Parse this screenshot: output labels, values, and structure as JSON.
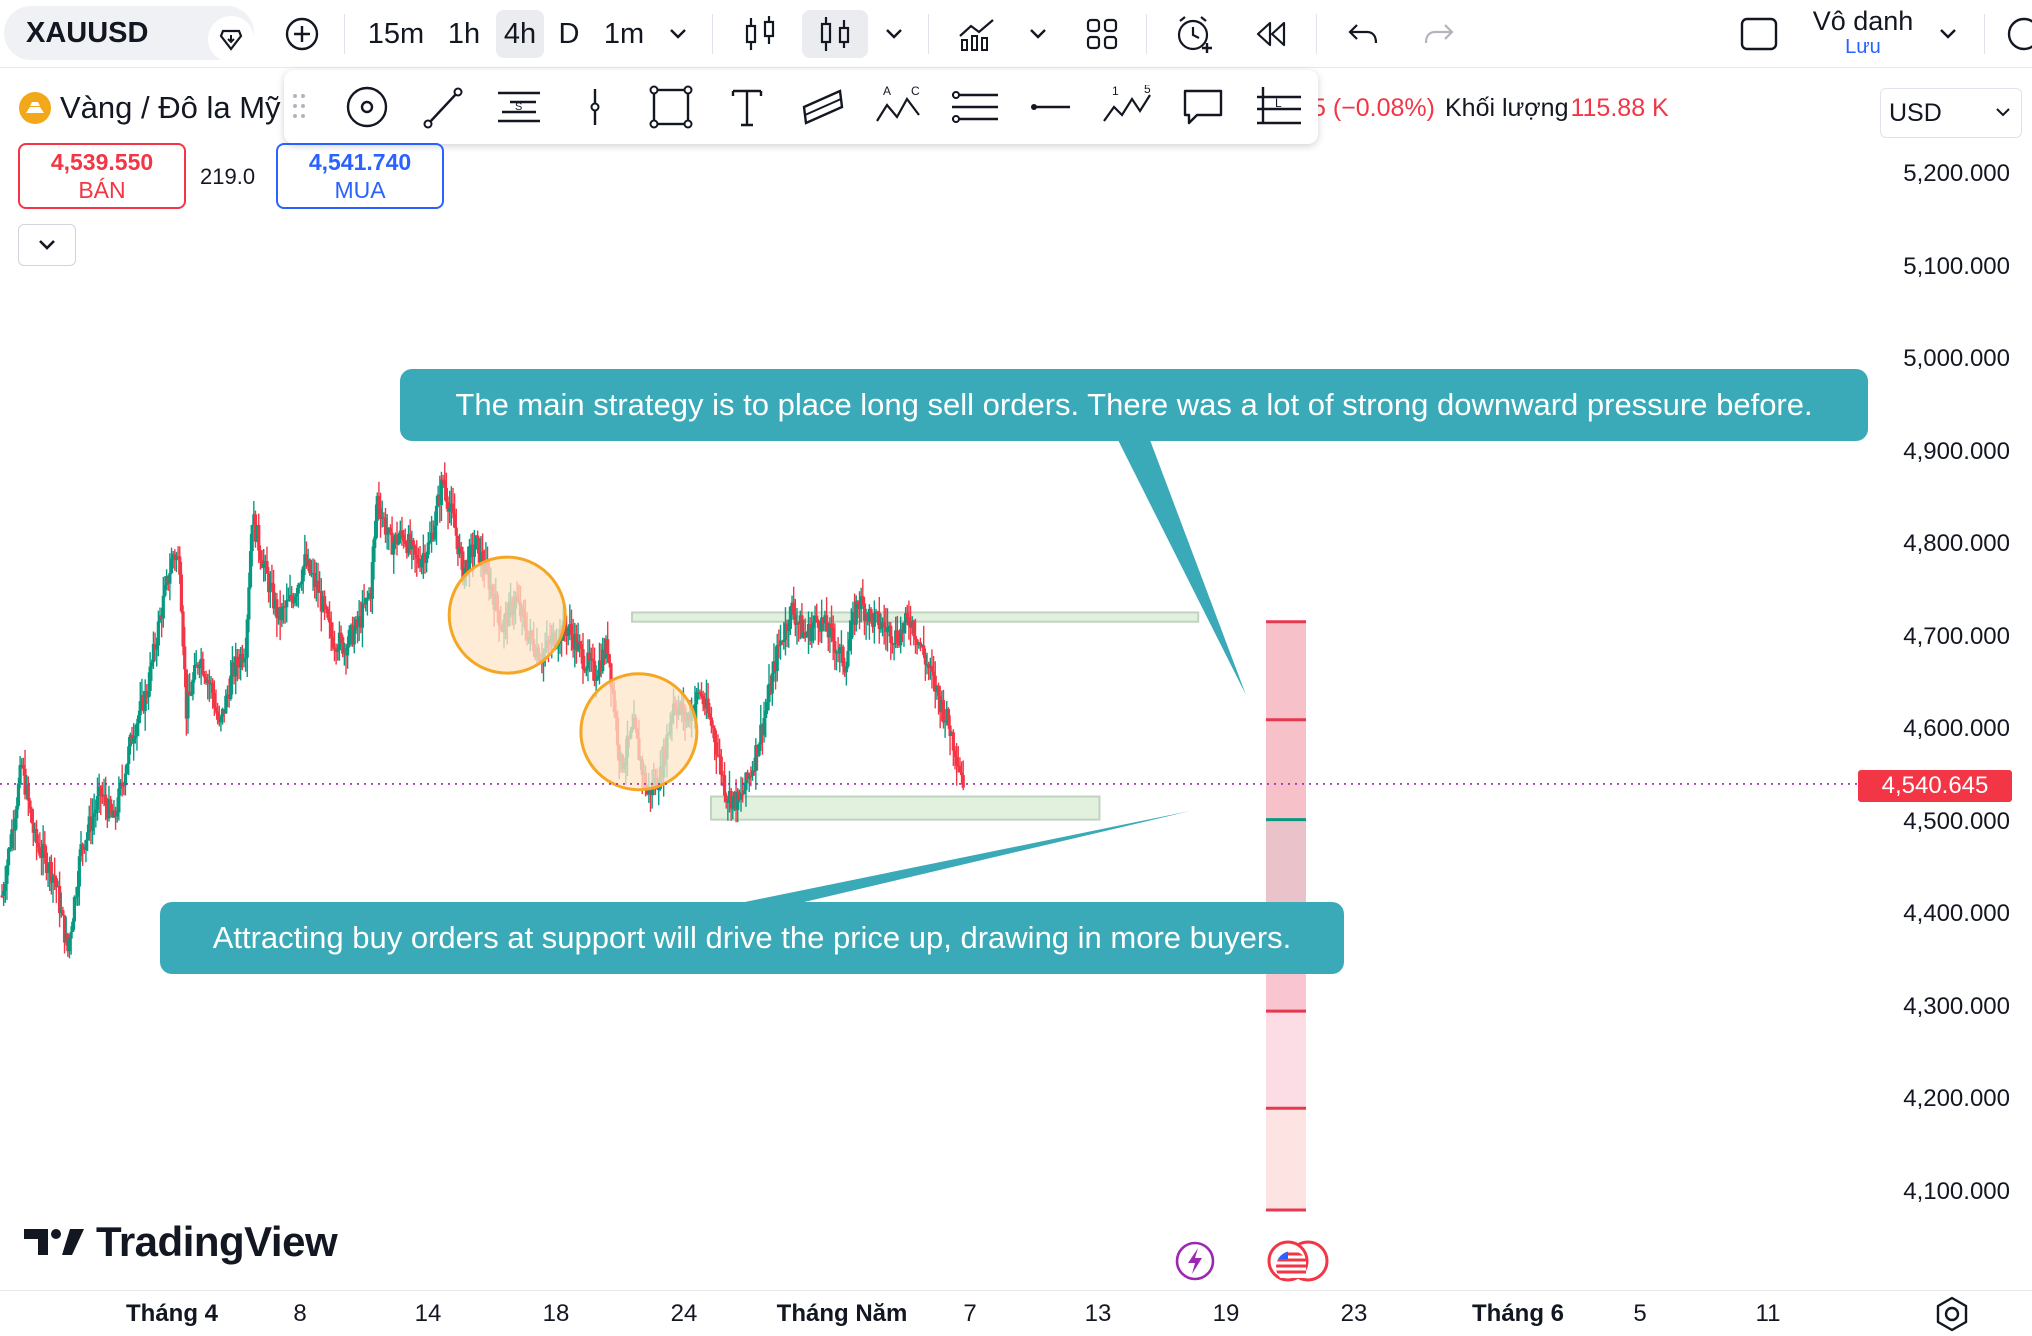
{
  "topbar": {
    "symbol": "XAUUSD",
    "timeframes": [
      "15m",
      "1h",
      "4h",
      "D",
      "1m"
    ],
    "selected_timeframe": "4h",
    "account_name": "Vô danh",
    "account_sub": "Lưu"
  },
  "legend": {
    "title": "Vàng / Đô la Mỹ",
    "change_text": "5 (−0.08%)",
    "volume_label": "Khối lượng",
    "volume_value": "115.88 K",
    "currency": "USD"
  },
  "trade": {
    "sell_price": "4,539.550",
    "sell_label": "BÁN",
    "spread": "219.0",
    "buy_price": "4,541.740",
    "buy_label": "MUA"
  },
  "colors": {
    "up": "#089981",
    "down": "#f23645",
    "callout": "#3aaab8",
    "circle_stroke": "#f5a623",
    "circle_fill": "#fde6c8",
    "zone_fill": "#dcefd9",
    "zone_stroke": "#b6ccb6"
  },
  "icons": {
    "drawing_tools": [
      "cursor-cross-icon",
      "trend-line-icon",
      "fib-retracement-icon",
      "vertical-line-icon",
      "rectangle-icon",
      "text-icon",
      "channel-icon",
      "abc-pattern-icon",
      "horizontal-lines-icon",
      "horizontal-ray-icon",
      "elliott-wave-icon",
      "callout-icon",
      "long-position-icon"
    ]
  },
  "annotations": {
    "callout_top": "The main strategy is to place long sell orders. There was a lot of strong downward pressure before.",
    "callout_bottom": "Attracting buy orders at support will drive the price up, drawing in more buyers."
  },
  "branding": {
    "logo_text": "TradingView"
  },
  "chart_data": {
    "type": "candlestick",
    "symbol": "XAUUSD",
    "interval": "4h",
    "last_price": 4540.645,
    "last_price_label": "4,540.645",
    "y_ticks": [
      5200,
      5100,
      5000,
      4900,
      4800,
      4700,
      4600,
      4500,
      4400,
      4300,
      4200,
      4100
    ],
    "y_tick_labels": [
      "5,200.000",
      "5,100.000",
      "5,000.000",
      "4,900.000",
      "4,800.000",
      "4,700.000",
      "4,600.000",
      "4,500.000",
      "4,400.000",
      "4,300.000",
      "4,200.000",
      "4,100.000"
    ],
    "ylim": [
      4050,
      5290
    ],
    "x_tick_labels": [
      {
        "label": "Tháng 4",
        "major": true
      },
      {
        "label": "8",
        "major": false
      },
      {
        "label": "14",
        "major": false
      },
      {
        "label": "18",
        "major": false
      },
      {
        "label": "24",
        "major": false
      },
      {
        "label": "Tháng Năm",
        "major": true
      },
      {
        "label": "7",
        "major": false
      },
      {
        "label": "13",
        "major": false
      },
      {
        "label": "19",
        "major": false
      },
      {
        "label": "23",
        "major": false
      },
      {
        "label": "Tháng 6",
        "major": true
      },
      {
        "label": "5",
        "major": false
      },
      {
        "label": "11",
        "major": false
      }
    ],
    "price_path": [
      [
        0,
        4420
      ],
      [
        6,
        4560
      ],
      [
        10,
        4480
      ],
      [
        16,
        4440
      ],
      [
        20,
        4360
      ],
      [
        24,
        4470
      ],
      [
        30,
        4530
      ],
      [
        34,
        4500
      ],
      [
        40,
        4600
      ],
      [
        44,
        4640
      ],
      [
        48,
        4720
      ],
      [
        52,
        4790
      ],
      [
        54,
        4780
      ],
      [
        56,
        4620
      ],
      [
        60,
        4680
      ],
      [
        64,
        4640
      ],
      [
        66,
        4600
      ],
      [
        70,
        4660
      ],
      [
        74,
        4690
      ],
      [
        76,
        4830
      ],
      [
        80,
        4770
      ],
      [
        84,
        4720
      ],
      [
        88,
        4740
      ],
      [
        92,
        4780
      ],
      [
        96,
        4750
      ],
      [
        100,
        4700
      ],
      [
        104,
        4690
      ],
      [
        108,
        4710
      ],
      [
        112,
        4750
      ],
      [
        114,
        4850
      ],
      [
        118,
        4800
      ],
      [
        122,
        4810
      ],
      [
        126,
        4780
      ],
      [
        130,
        4800
      ],
      [
        134,
        4870
      ],
      [
        138,
        4810
      ],
      [
        140,
        4770
      ],
      [
        144,
        4800
      ],
      [
        148,
        4760
      ],
      [
        152,
        4710
      ],
      [
        156,
        4740
      ],
      [
        160,
        4700
      ],
      [
        164,
        4680
      ],
      [
        168,
        4700
      ],
      [
        172,
        4710
      ],
      [
        176,
        4680
      ],
      [
        180,
        4660
      ],
      [
        184,
        4690
      ],
      [
        188,
        4560
      ],
      [
        192,
        4600
      ],
      [
        196,
        4530
      ],
      [
        200,
        4550
      ],
      [
        204,
        4630
      ],
      [
        208,
        4610
      ],
      [
        212,
        4640
      ],
      [
        216,
        4600
      ],
      [
        220,
        4530
      ],
      [
        224,
        4520
      ],
      [
        228,
        4560
      ],
      [
        232,
        4620
      ],
      [
        236,
        4690
      ],
      [
        240,
        4730
      ],
      [
        244,
        4700
      ],
      [
        248,
        4720
      ],
      [
        252,
        4700
      ],
      [
        256,
        4670
      ],
      [
        260,
        4740
      ],
      [
        264,
        4720
      ],
      [
        268,
        4710
      ],
      [
        272,
        4700
      ],
      [
        276,
        4720
      ],
      [
        280,
        4680
      ],
      [
        284,
        4640
      ],
      [
        288,
        4600
      ],
      [
        292,
        4545
      ]
    ],
    "x_index_range": [
      0,
      440
    ],
    "zones": [
      {
        "name": "resistance",
        "x0": 192,
        "x1": 364,
        "y0": 4716,
        "y1": 4726
      },
      {
        "name": "support",
        "x0": 216,
        "x1": 334,
        "y0": 4502,
        "y1": 4527
      }
    ],
    "highlights": [
      {
        "x": 148,
        "y": 4722
      },
      {
        "x": 188,
        "y": 4596
      }
    ],
    "position_tool": {
      "x0": 307,
      "x1": 317,
      "entry": 4502,
      "stop": 4716,
      "targets": [
        4610,
        4400,
        4295,
        4190,
        4080
      ]
    }
  }
}
